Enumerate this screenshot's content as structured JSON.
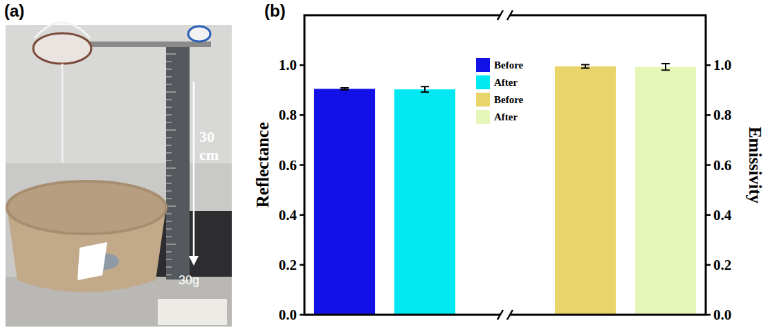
{
  "panel_a": {
    "label": "(a)",
    "height_label": "30 cm",
    "weight_label": "30g"
  },
  "chart_data": {
    "type": "bar",
    "panel_label": "(b)",
    "y_label": "Reflectance",
    "y2_label": "Emissivity",
    "categories": [
      null,
      null,
      null,
      null
    ],
    "series": [
      {
        "name": "Before",
        "color": "#1212e6",
        "values": [
          0.905,
          null,
          null,
          null
        ],
        "errors": [
          0.004,
          null,
          null,
          null
        ]
      },
      {
        "name": "After",
        "color": "#00e8f2",
        "values": [
          null,
          0.903,
          null,
          null
        ],
        "errors": [
          null,
          0.011,
          null,
          null
        ]
      },
      {
        "name": "Before",
        "color": "#e8d468",
        "axis": "y2",
        "values": [
          null,
          null,
          0.995,
          null
        ],
        "errors": [
          null,
          null,
          0.007,
          null
        ]
      },
      {
        "name": "After",
        "color": "#e6f6b8",
        "axis": "y2",
        "values": [
          null,
          null,
          null,
          0.993
        ],
        "errors": [
          null,
          null,
          null,
          0.013
        ]
      }
    ],
    "ylim": [
      0,
      1.2
    ],
    "yticks": [
      {
        "value": 0,
        "label": "0.0"
      },
      {
        "value": 0.2,
        "label": "0.2"
      },
      {
        "value": 0.4,
        "label": "0.4"
      },
      {
        "value": 0.6,
        "label": "0.6"
      },
      {
        "value": 0.8,
        "label": "0.8"
      },
      {
        "value": 1,
        "label": "1.0"
      }
    ],
    "y2lim": [
      0,
      1.2
    ],
    "y2ticks": [
      {
        "value": 0,
        "label": "0.0"
      },
      {
        "value": 0.2,
        "label": "0.2"
      },
      {
        "value": 0.4,
        "label": "0.4"
      },
      {
        "value": 0.6,
        "label": "0.6"
      },
      {
        "value": 0.8,
        "label": "0.8"
      },
      {
        "value": 1,
        "label": "1.0"
      }
    ],
    "legend": "top",
    "grid": false
  }
}
